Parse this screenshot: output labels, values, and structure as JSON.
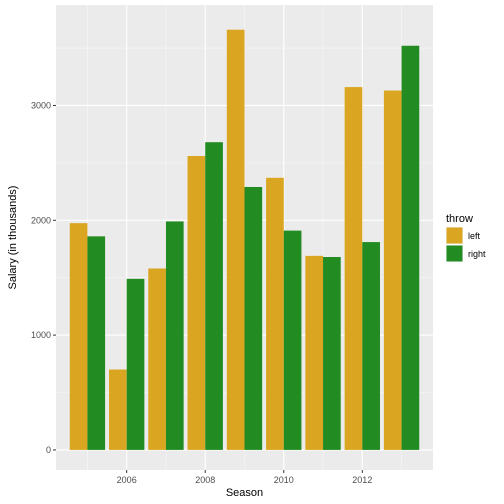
{
  "chart_data": {
    "type": "bar",
    "title": "",
    "xlabel": "Season",
    "ylabel": "Salary (in thousands)",
    "x": [
      2005,
      2006,
      2007,
      2008,
      2009,
      2010,
      2011,
      2012,
      2013
    ],
    "x_ticks": [
      2006,
      2008,
      2010,
      2012
    ],
    "xlim": [
      2004.2,
      2013.8
    ],
    "ylim": [
      -175,
      3875
    ],
    "y_ticks": [
      0,
      1000,
      2000,
      3000
    ],
    "grid": true,
    "legend_title": "throw",
    "legend_position": "right",
    "series": [
      {
        "name": "left",
        "color": "#DAA520",
        "values": [
          1975,
          700,
          1580,
          2560,
          3660,
          2370,
          1690,
          3160,
          3130
        ]
      },
      {
        "name": "right",
        "color": "#228B22",
        "values": [
          1860,
          1490,
          1990,
          2680,
          2290,
          1910,
          1680,
          1810,
          3520
        ]
      }
    ]
  }
}
